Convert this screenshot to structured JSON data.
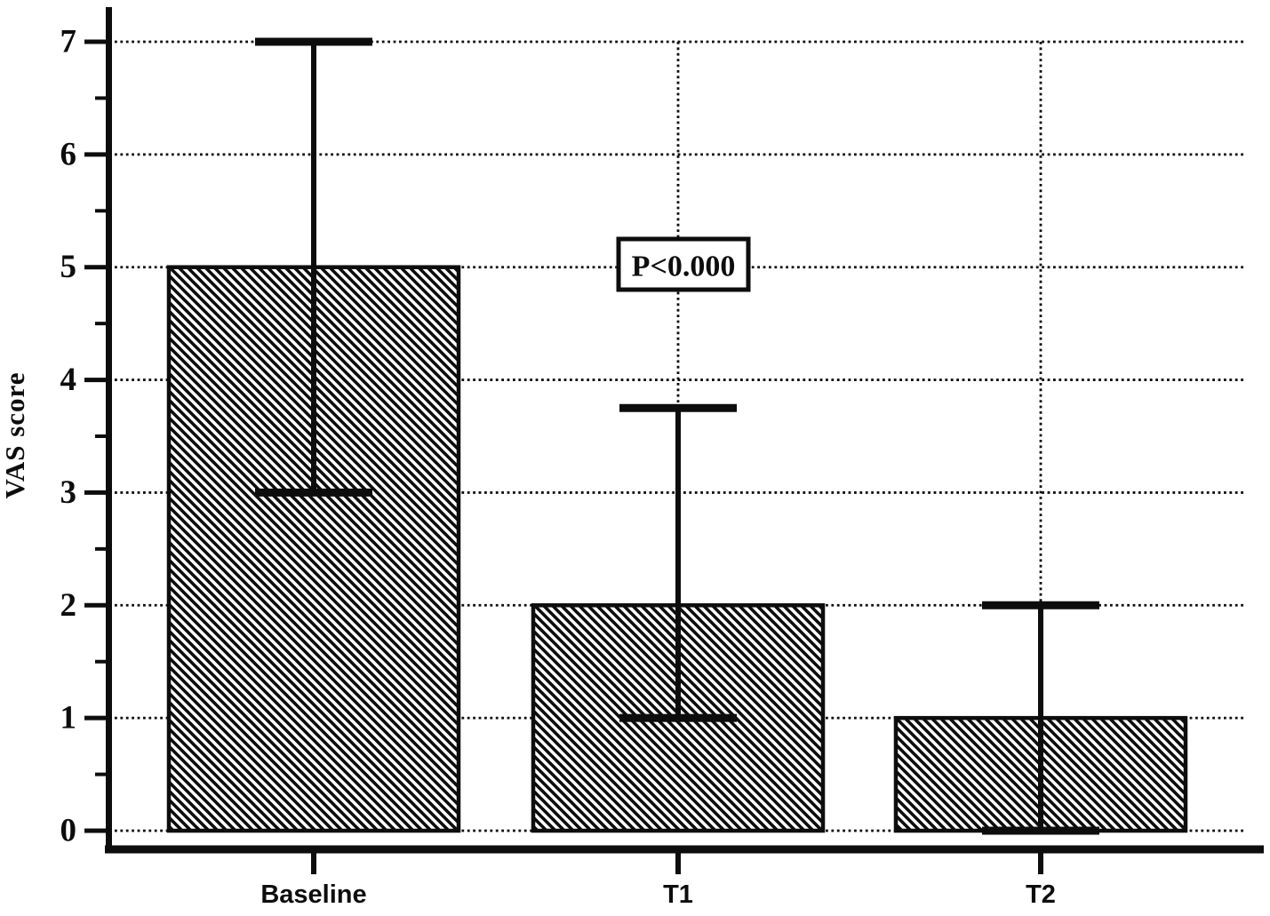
{
  "chart_data": {
    "type": "bar",
    "title": "",
    "xlabel": "",
    "ylabel": "VAS score",
    "categories": [
      "Baseline",
      "T1",
      "T2"
    ],
    "values": [
      5,
      2,
      1
    ],
    "error_low": [
      3,
      1,
      0
    ],
    "error_high": [
      7,
      3.75,
      2
    ],
    "ylim": [
      0,
      7
    ],
    "yticks": [
      0,
      1,
      2,
      3,
      4,
      5,
      6,
      7
    ],
    "minor_ticks": [
      0.5,
      1.5,
      2.5,
      3.5,
      4.5,
      5.5,
      6.5
    ],
    "legend": "none",
    "grid": {
      "horizontal": "dotted at every integer",
      "vertical": "dotted at category centers"
    },
    "bar_style": "white fill with black diagonal hatch (backslash direction), black outline",
    "annotation": {
      "text": "P<0.000",
      "near_category": "T1",
      "y_value": 5
    },
    "colors": {
      "ink": "#0d0d0d",
      "background": "#ffffff"
    }
  }
}
